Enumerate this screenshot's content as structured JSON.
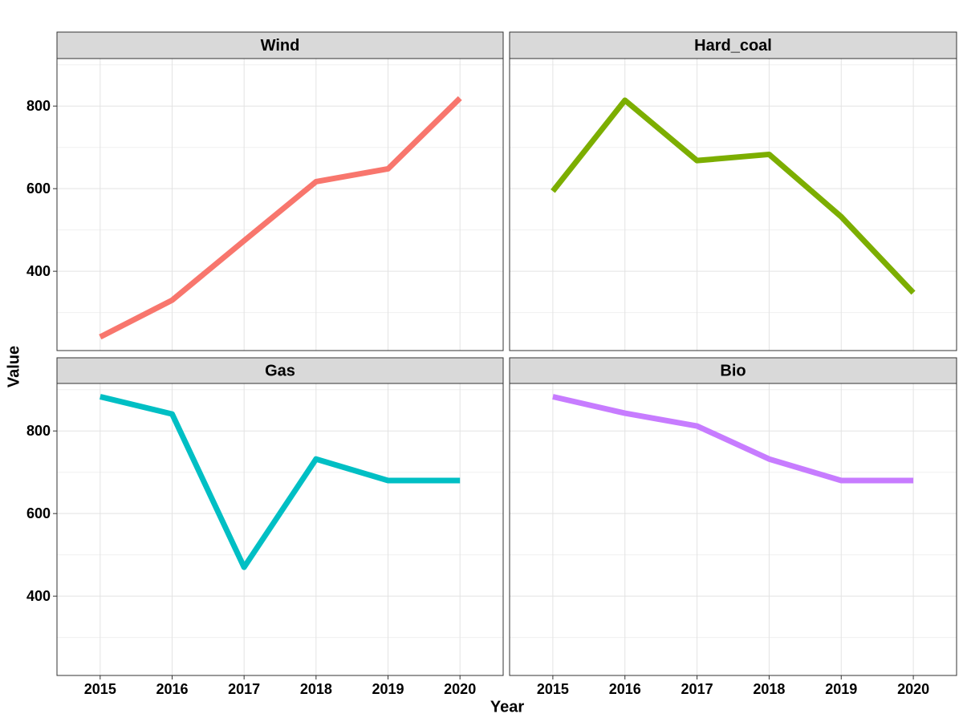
{
  "chart_data": {
    "type": "line",
    "x_label": "Year",
    "y_label": "Value",
    "x": [
      2015,
      2016,
      2017,
      2018,
      2019,
      2020
    ],
    "xlim": [
      2014.4,
      2020.6
    ],
    "xticks": [
      2015,
      2016,
      2017,
      2018,
      2019,
      2020
    ],
    "ylim": [
      208,
      915
    ],
    "yticks": [
      400,
      600,
      800
    ],
    "minor_yticks": [
      300,
      500,
      700,
      900
    ],
    "grid": true,
    "panels": [
      {
        "title": "Wind",
        "color": "#F8766D",
        "values": [
          241,
          330,
          474,
          617,
          648,
          819
        ]
      },
      {
        "title": "Hard_coal",
        "color": "#7CAE00",
        "values": [
          594,
          814,
          668,
          683,
          532,
          348
        ]
      },
      {
        "title": "Gas",
        "color": "#00BFC4",
        "values": [
          883,
          841,
          470,
          732,
          680,
          680
        ]
      },
      {
        "title": "Bio",
        "color": "#C77CFF",
        "values": [
          883,
          843,
          812,
          732,
          680,
          680
        ]
      }
    ]
  }
}
